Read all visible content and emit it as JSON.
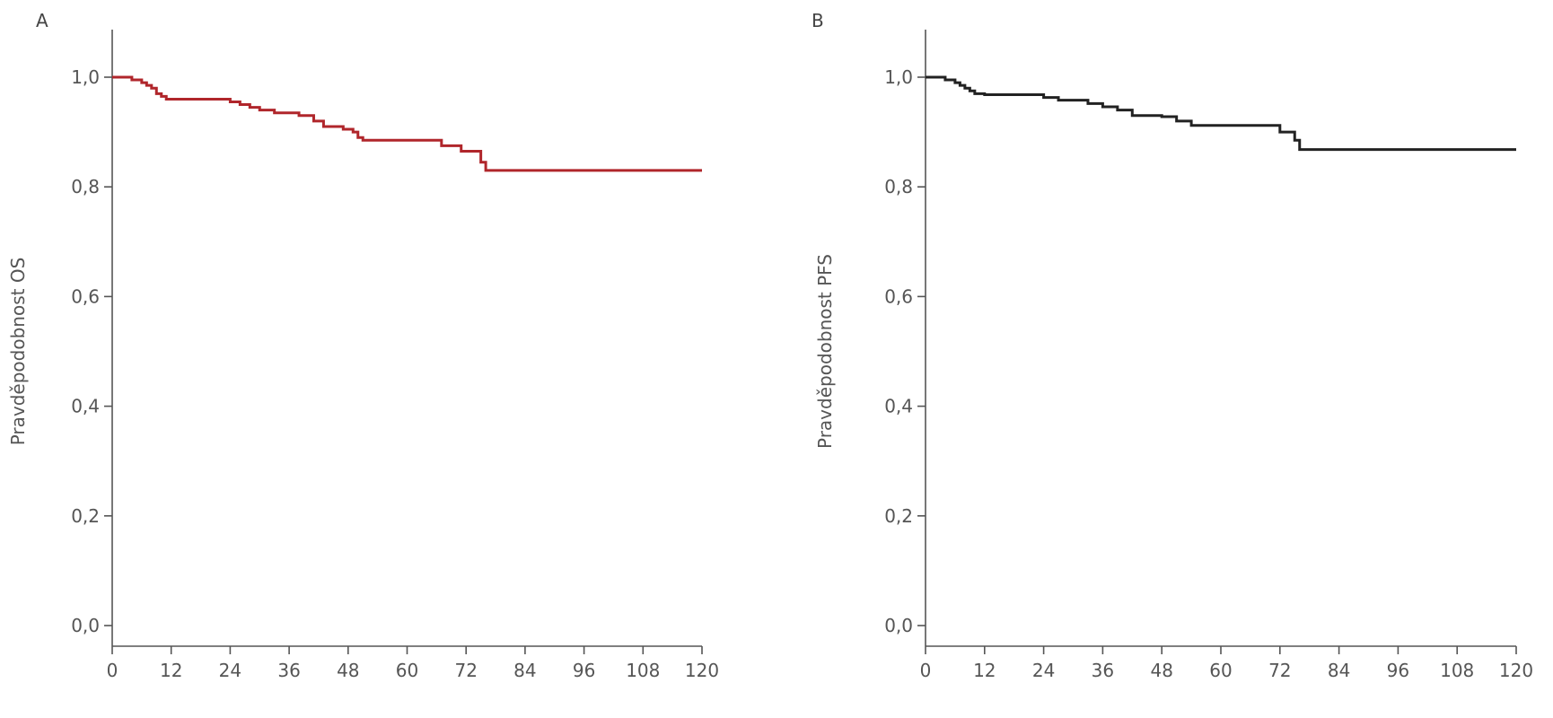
{
  "chart_data": [
    {
      "type": "line",
      "step": true,
      "panel_label": "A",
      "title": "",
      "xlabel": "",
      "ylabel": "Pravděpodobnost OS",
      "xlim": [
        0,
        120
      ],
      "ylim": [
        0,
        1
      ],
      "x_ticks": [
        0,
        12,
        24,
        36,
        48,
        60,
        72,
        84,
        96,
        108,
        120
      ],
      "x_tick_labels": [
        "0",
        "12",
        "24",
        "36",
        "48",
        "60",
        "72",
        "84",
        "96",
        "108",
        "120"
      ],
      "y_ticks": [
        0,
        0.2,
        0.4,
        0.6,
        0.8,
        1.0
      ],
      "y_tick_labels": [
        "0,0",
        "0,2",
        "0,4",
        "0,6",
        "0,8",
        "1,0"
      ],
      "grid": false,
      "color": "#b0262b",
      "series": [
        {
          "x": [
            0,
            4,
            6,
            7,
            8,
            9,
            10,
            11,
            24,
            26,
            28,
            30,
            33,
            38,
            41,
            43,
            47,
            49,
            50,
            51,
            67,
            71,
            75,
            76,
            120
          ],
          "y": [
            1.0,
            0.995,
            0.99,
            0.985,
            0.98,
            0.97,
            0.965,
            0.96,
            0.955,
            0.95,
            0.945,
            0.94,
            0.935,
            0.93,
            0.92,
            0.91,
            0.905,
            0.9,
            0.89,
            0.885,
            0.875,
            0.865,
            0.845,
            0.83,
            0.83
          ]
        }
      ]
    },
    {
      "type": "line",
      "step": true,
      "panel_label": "B",
      "title": "",
      "xlabel": "",
      "ylabel": "Pravděpodobnost PFS",
      "xlim": [
        0,
        120
      ],
      "ylim": [
        0,
        1
      ],
      "x_ticks": [
        0,
        12,
        24,
        36,
        48,
        60,
        72,
        84,
        96,
        108,
        120
      ],
      "x_tick_labels": [
        "0",
        "12",
        "24",
        "36",
        "48",
        "60",
        "72",
        "84",
        "96",
        "108",
        "120"
      ],
      "y_ticks": [
        0,
        0.2,
        0.4,
        0.6,
        0.8,
        1.0
      ],
      "y_tick_labels": [
        "0,0",
        "0,2",
        "0,4",
        "0,6",
        "0,8",
        "1,0"
      ],
      "grid": false,
      "color": "#222222",
      "series": [
        {
          "x": [
            0,
            4,
            6,
            7,
            8,
            9,
            10,
            12,
            24,
            27,
            33,
            36,
            39,
            42,
            48,
            51,
            54,
            72,
            75,
            76,
            120
          ],
          "y": [
            1.0,
            0.995,
            0.99,
            0.985,
            0.98,
            0.975,
            0.97,
            0.968,
            0.963,
            0.958,
            0.952,
            0.946,
            0.94,
            0.93,
            0.928,
            0.92,
            0.912,
            0.9,
            0.885,
            0.868,
            0.868
          ]
        }
      ]
    }
  ]
}
